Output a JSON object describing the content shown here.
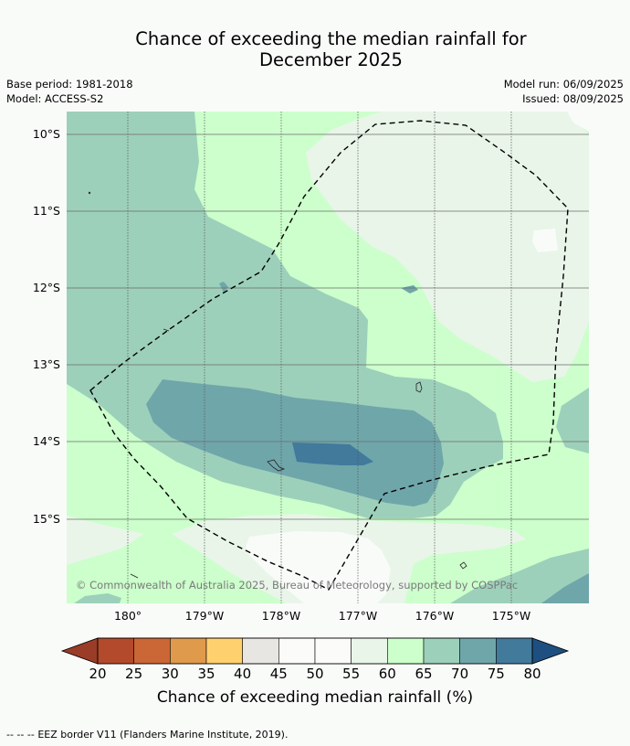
{
  "header": {
    "title_line1": "Chance of exceeding the median rainfall for",
    "title_line2": "December 2025",
    "base_period": "Base period: 1981-2018",
    "model": "Model: ACCESS-S2",
    "model_run": "Model run: 06/09/2025",
    "issued": "Issued: 08/09/2025"
  },
  "map": {
    "lat_labels": [
      "10°S",
      "11°S",
      "12°S",
      "13°S",
      "14°S",
      "15°S"
    ],
    "lon_labels": [
      "180°",
      "179°W",
      "178°W",
      "177°W",
      "176°W",
      "175°W"
    ],
    "copyright": "© Commonwealth of Australia 2025, Bureau of Meteorology, supported by COSPPac",
    "overlay": "EEZ border (dashed)",
    "category_colors": {
      "45-50": "#f9fbf9",
      "55-60": "#e9f5e9",
      "60-65": "#ccffcc",
      "65-70": "#9dd0ba",
      "70-75": "#6fa6aa",
      "75-80": "#427a9c"
    }
  },
  "colorbar": {
    "ticks": [
      "20",
      "25",
      "30",
      "35",
      "40",
      "45",
      "50",
      "55",
      "60",
      "65",
      "70",
      "75",
      "80"
    ],
    "colors": [
      "#b34a2c",
      "#cb6636",
      "#e09a4c",
      "#ffd16e",
      "#e8e6e3",
      "#fbfcfa",
      "#fbfcfa",
      "#e9f5e9",
      "#ccffcc",
      "#9dd0ba",
      "#6fa6aa",
      "#427a9c"
    ],
    "under_color": "#9a3c27",
    "over_color": "#1d4f80",
    "label": "Chance of exceeding median rainfall (%)"
  },
  "footer": {
    "legend_symbol": "-- -- --",
    "eez_note": "EEZ border V11 (Flanders Marine Institute, 2019)."
  }
}
